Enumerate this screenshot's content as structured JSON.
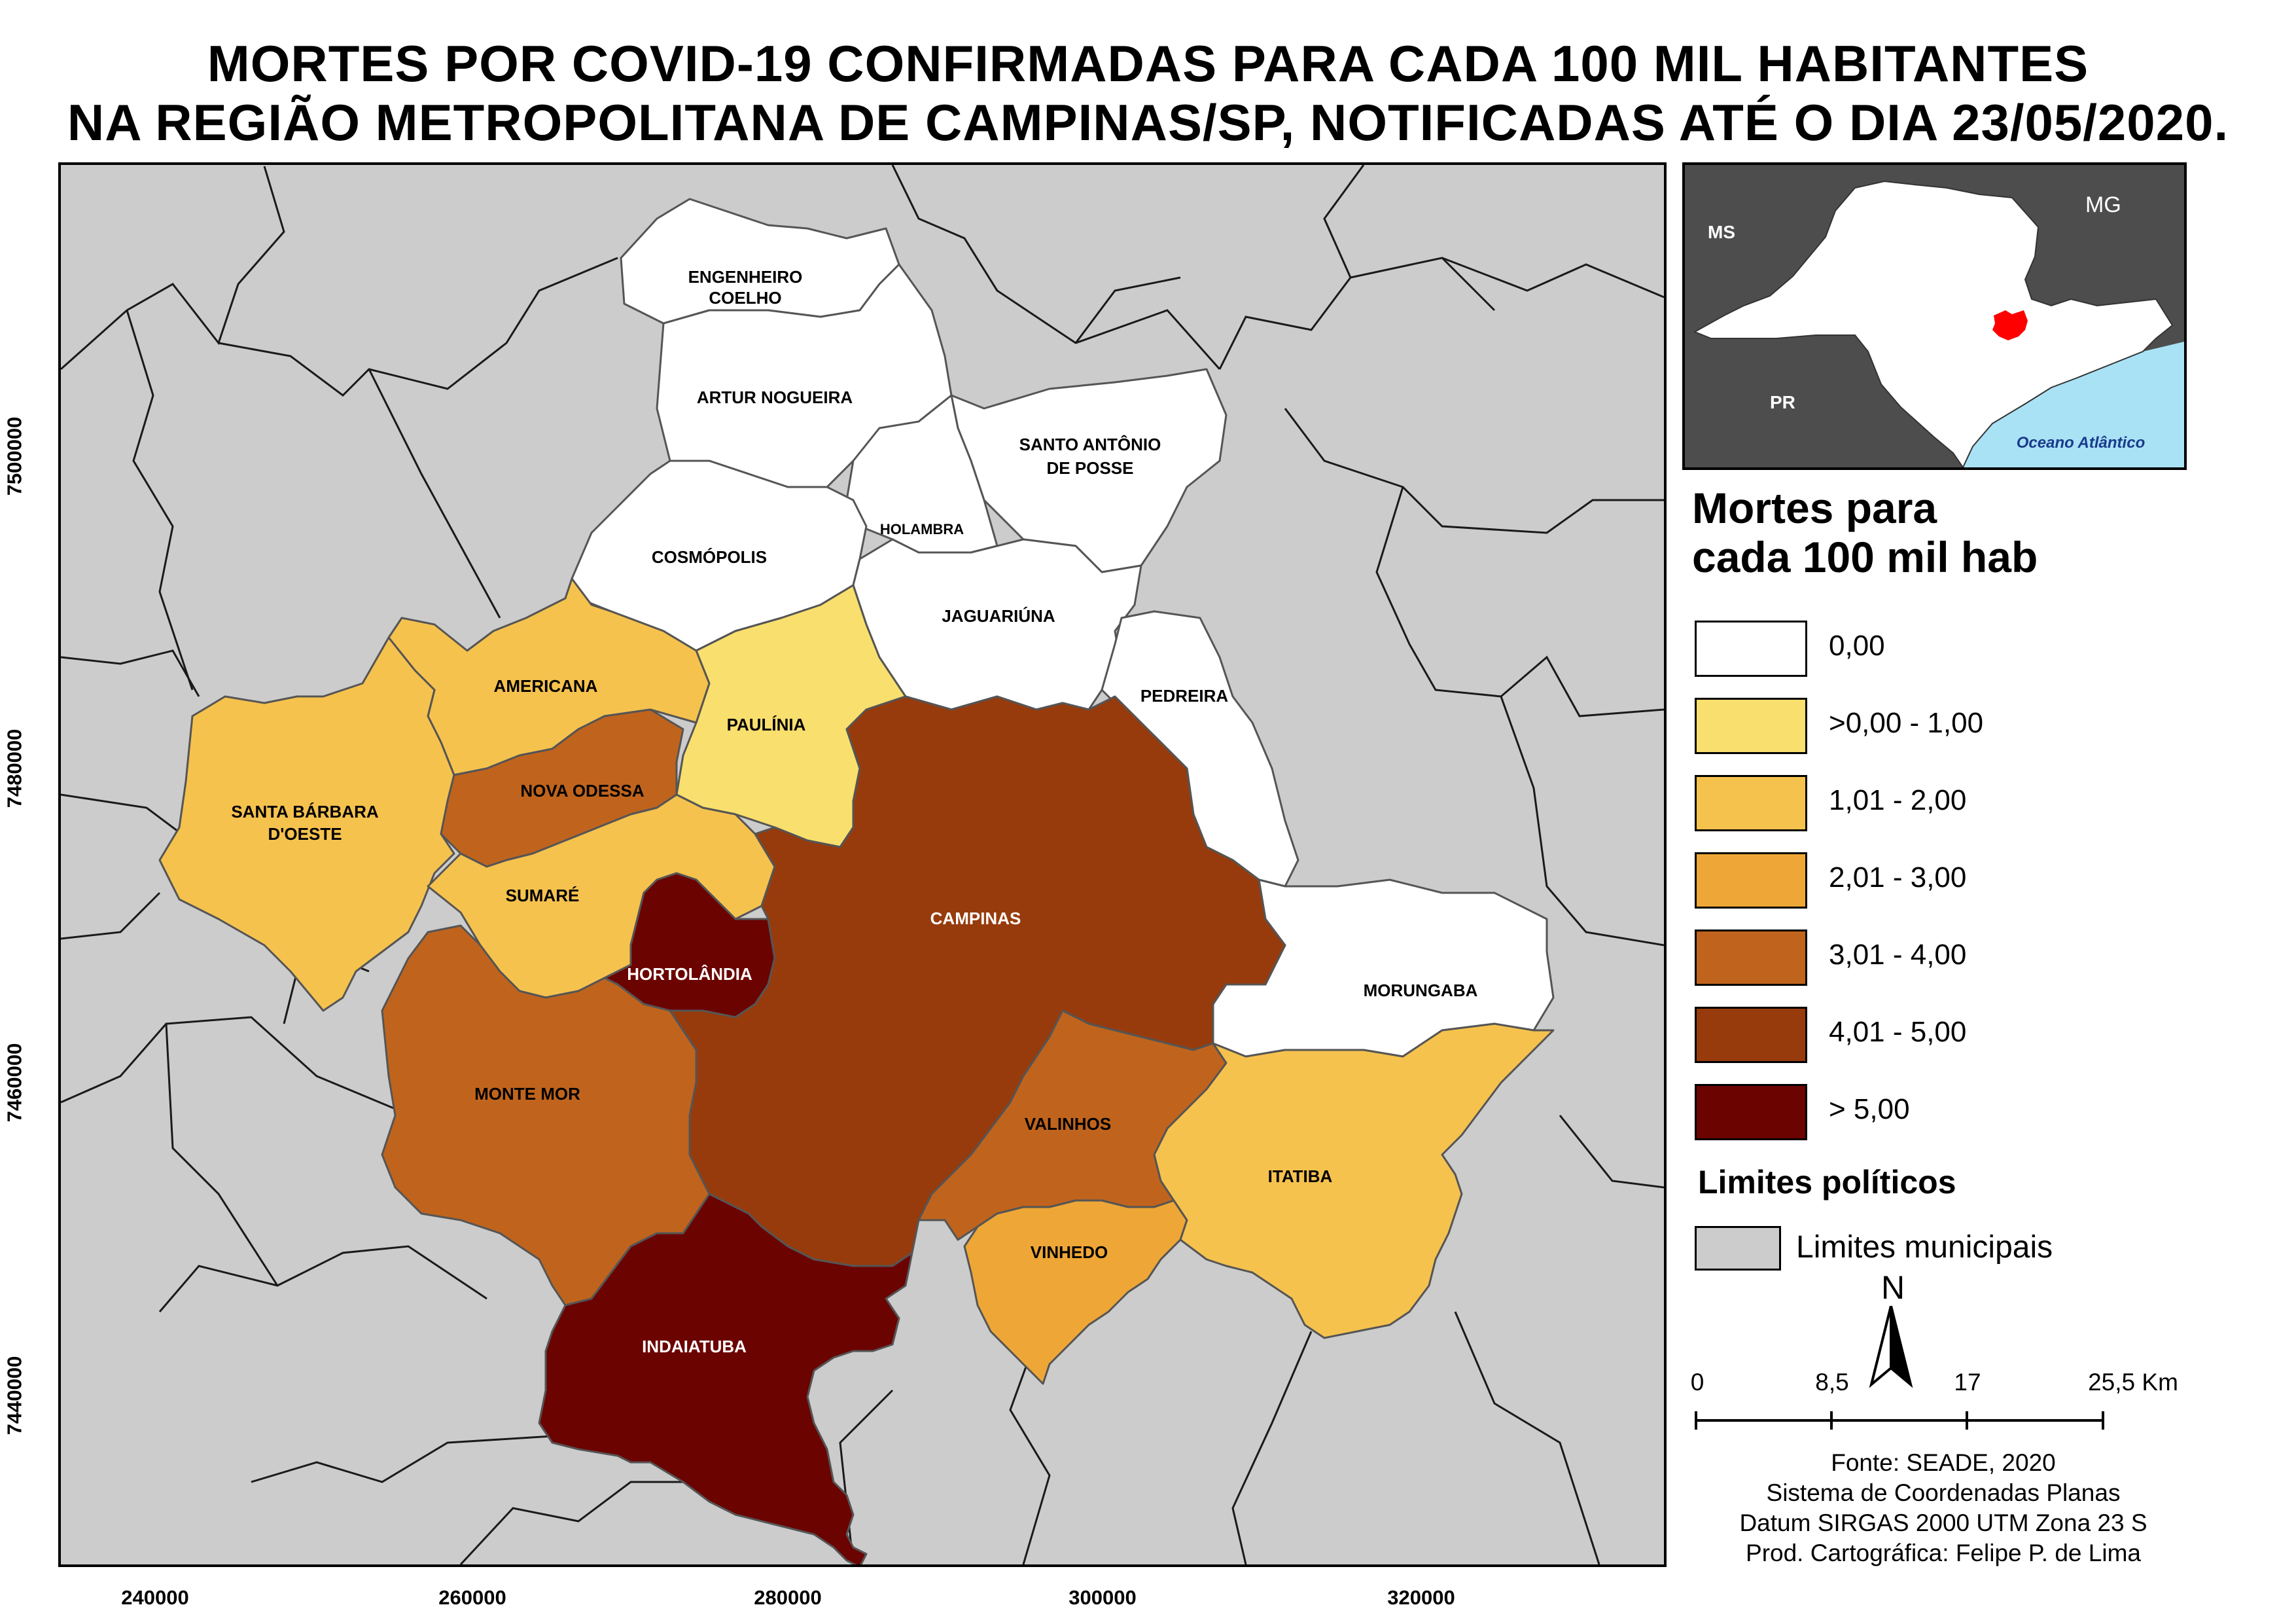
{
  "title": {
    "line1": "MORTES POR COVID-19  CONFIRMADAS PARA CADA 100 MIL HABITANTES",
    "line2": "NA REGIÃO METROPOLITANA DE CAMPINAS/SP, NOTIFICADAS ATÉ O DIA 23/05/2020."
  },
  "axes": {
    "x_ticks": [
      "240000",
      "260000",
      "280000",
      "300000",
      "320000"
    ],
    "y_ticks": [
      "7500000",
      "7480000",
      "7460000",
      "7440000"
    ]
  },
  "colors": {
    "class_0": "#ffffff",
    "class_1": "#f9df6d",
    "class_2": "#f6c24e",
    "class_3": "#eea736",
    "class_4": "#c0641d",
    "class_5": "#973b0c",
    "class_6": "#6b0300",
    "neighbors": "#cccccc",
    "inset_state": "#ffffff",
    "inset_outside": "#4d4d4d",
    "inset_ocean": "#a9e2f5",
    "inset_rmc": "#ff0000"
  },
  "municipalities": [
    {
      "name_lines": [
        "ENGENHEIRO",
        "COELHO"
      ],
      "class": 0
    },
    {
      "name_lines": [
        "ARTUR NOGUEIRA"
      ],
      "class": 0
    },
    {
      "name_lines": [
        "SANTO ANTÔNIO",
        "DE POSSE"
      ],
      "class": 0
    },
    {
      "name_lines": [
        "HOLAMBRA"
      ],
      "class": 0
    },
    {
      "name_lines": [
        "COSMÓPOLIS"
      ],
      "class": 0
    },
    {
      "name_lines": [
        "JAGUARIÚNA"
      ],
      "class": 0
    },
    {
      "name_lines": [
        "PEDREIRA"
      ],
      "class": 0
    },
    {
      "name_lines": [
        "MORUNGABA"
      ],
      "class": 0
    },
    {
      "name_lines": [
        "PAULÍNIA"
      ],
      "class": 1
    },
    {
      "name_lines": [
        "AMERICANA"
      ],
      "class": 2
    },
    {
      "name_lines": [
        "SANTA BÁRBARA",
        "D'OESTE"
      ],
      "class": 2
    },
    {
      "name_lines": [
        "SUMARÉ"
      ],
      "class": 2
    },
    {
      "name_lines": [
        "ITATIBA"
      ],
      "class": 2
    },
    {
      "name_lines": [
        "VINHEDO"
      ],
      "class": 3
    },
    {
      "name_lines": [
        "NOVA ODESSA"
      ],
      "class": 4
    },
    {
      "name_lines": [
        "MONTE MOR"
      ],
      "class": 4
    },
    {
      "name_lines": [
        "VALINHOS"
      ],
      "class": 4
    },
    {
      "name_lines": [
        "CAMPINAS"
      ],
      "class": 5
    },
    {
      "name_lines": [
        "HORTOLÂNDIA"
      ],
      "class": 6
    },
    {
      "name_lines": [
        "INDAIATUBA"
      ],
      "class": 6
    }
  ],
  "inset": {
    "labels": {
      "ms": "MS",
      "mg": "MG",
      "pr": "PR",
      "ocean": "Oceano Atlântico"
    }
  },
  "legend": {
    "heading_line1": "Mortes para",
    "heading_line2": "cada 100 mil hab",
    "classes": [
      "0,00",
      ">0,00 - 1,00",
      "1,01 - 2,00",
      "2,01 - 3,00",
      "3,01 - 4,00",
      "4,01 - 5,00",
      "> 5,00"
    ],
    "political_heading": "Limites políticos",
    "municipal_limits": "Limites municipais"
  },
  "north_arrow": {
    "label": "N"
  },
  "scale_bar": {
    "labels": [
      "0",
      "8,5",
      "17",
      "25,5 Km"
    ]
  },
  "credits": {
    "source": "Fonte: SEADE, 2020",
    "coord_system": "Sistema de Coordenadas Planas",
    "datum": "Datum SIRGAS 2000 UTM Zona 23 S",
    "author": "Prod. Cartográfica: Felipe P. de Lima"
  }
}
